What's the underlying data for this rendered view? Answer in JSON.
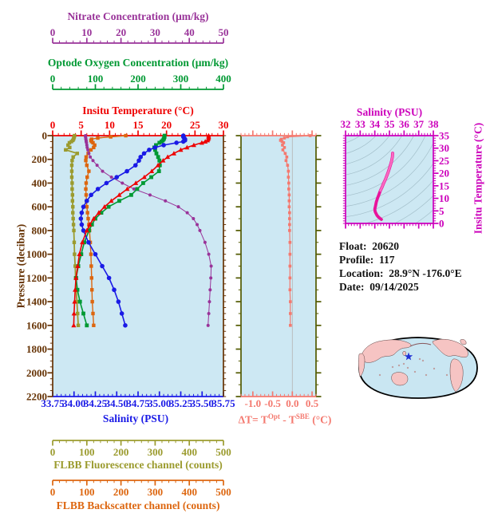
{
  "float_info": {
    "float_label": "Float:",
    "float_value": "20620",
    "profile_label": "Profile:",
    "profile_value": "117",
    "location_label": "Location:",
    "location_value": "28.9°N  -176.0°E",
    "date_label": "Date:",
    "date_value": "09/14/2025"
  },
  "titles": {
    "nitrate": "Nitrate Concentration (μm/kg)",
    "oxygen": "Optode Oxygen Concentration (μm/kg)",
    "temperature": "Insitu Temperature (°C)",
    "pressure": "Pressure (decibar)",
    "salinity": "Salinity (PSU)",
    "fluorescence": "FLBB Fluorescence channel (counts)",
    "backscatter": "FLBB Backscatter channel (counts)",
    "delta_t_prefix": "ΔT= T",
    "delta_t_sup1": "Opt",
    "delta_t_mid": " - T",
    "delta_t_sup2": "SBE",
    "delta_t_suffix": " (°C)",
    "ts_salinity": "Salinity (PSU)",
    "ts_temperature": "Insitu Temperature (°C)"
  },
  "colors": {
    "purple": "#993399",
    "green": "#009933",
    "red": "#ee0000",
    "brown": "#663305",
    "blue": "#1a1ae6",
    "olive": "#9b9b2e",
    "orange": "#dd660f",
    "salmon": "#f4796f",
    "darkolive": "#525a00",
    "magenta": "#cc00bb",
    "ts_curve_deep": "#e8139b",
    "ts_curve_shallow": "#fa6ac1",
    "plot_bg": "#cde8f3",
    "contour": "#a3bfca",
    "zero_line": "#b8b8b8",
    "map_ocean": "#c9e6f2",
    "map_land": "#f6c4c3",
    "map_outline": "#000000",
    "star": "#1f2fd4",
    "info_text": "#111111"
  },
  "chart_data": [
    {
      "id": "profile-plot",
      "type": "line",
      "title": "Multi-sensor vertical profile",
      "ylabel": "Pressure (decibar)",
      "ylim": [
        0,
        2200
      ],
      "yticks": [
        "0",
        "200",
        "400",
        "600",
        "800",
        "1000",
        "1200",
        "1400",
        "1600",
        "1800",
        "2000",
        "2200"
      ],
      "grid": false,
      "pressure": [
        0,
        10,
        20,
        30,
        40,
        50,
        60,
        80,
        100,
        120,
        150,
        180,
        210,
        250,
        300,
        350,
        400,
        450,
        500,
        550,
        600,
        650,
        700,
        750,
        800,
        900,
        1000,
        1100,
        1200,
        1300,
        1400,
        1500,
        1600
      ],
      "series": [
        {
          "name": "FLBB Fluorescence channel",
          "unit": "counts",
          "color_key": "olive",
          "axis": "offset-bottom-1",
          "xlim": [
            0,
            500
          ],
          "xticks": [
            "0",
            "100",
            "200",
            "300",
            "400",
            "500"
          ],
          "minor": 20,
          "marker": "square",
          "values": [
            64,
            63,
            62,
            61,
            59,
            55,
            49,
            45,
            50,
            38,
            72,
            60,
            57,
            56,
            56,
            56,
            57,
            57,
            58,
            58,
            59,
            59,
            60,
            61,
            62,
            63,
            64,
            66,
            67,
            69,
            71,
            73,
            75
          ]
        },
        {
          "name": "FLBB Backscatter channel",
          "unit": "counts",
          "color_key": "orange",
          "axis": "offset-bottom-2",
          "xlim": [
            0,
            500
          ],
          "xticks": [
            "0",
            "100",
            "200",
            "300",
            "400",
            "500"
          ],
          "minor": 20,
          "marker": "square",
          "values": [
            214,
            170,
            132,
            114,
            112,
            114,
            118,
            123,
            120,
            112,
            104,
            98,
            97,
            100,
            106,
            101,
            98,
            97,
            98,
            99,
            100,
            102,
            104,
            106,
            108,
            110,
            112,
            113,
            114,
            115,
            116,
            118,
            120
          ]
        },
        {
          "name": "Nitrate Concentration",
          "unit": "μm/kg",
          "color_key": "purple",
          "axis": "offset-top-1",
          "xlim": [
            0,
            50
          ],
          "xticks": [
            "0",
            "10",
            "20",
            "30",
            "40",
            "50"
          ],
          "minor": 2,
          "marker": "circle",
          "values": [
            9.6,
            9.6,
            9.7,
            9.7,
            9.8,
            9.8,
            9.9,
            10.0,
            10.1,
            10.3,
            10.6,
            11.0,
            11.8,
            13.0,
            14.6,
            17.2,
            20.4,
            23.8,
            28.5,
            33.0,
            36.8,
            39.4,
            41.2,
            42.3,
            43.1,
            44.6,
            45.7,
            46.4,
            46.3,
            46.1,
            45.9,
            45.7,
            45.5
          ]
        },
        {
          "name": "Optode Oxygen Concentration",
          "unit": "μm/kg",
          "color_key": "green",
          "axis": "offset-top-2",
          "xlim": [
            0,
            400
          ],
          "xticks": [
            "0",
            "100",
            "200",
            "300",
            "400"
          ],
          "minor": 20,
          "marker": "square",
          "values": [
            262,
            262,
            261,
            260,
            258,
            255,
            250,
            242,
            238,
            240,
            243,
            247,
            250,
            251,
            249,
            231,
            212,
            198,
            184,
            156,
            131,
            114,
            100,
            92,
            85,
            74,
            67,
            60,
            55,
            58,
            64,
            72,
            80
          ]
        },
        {
          "name": "Salinity",
          "unit": "PSU",
          "color_key": "blue",
          "axis": "plot-bottom",
          "xlim": [
            33.75,
            35.75
          ],
          "xticks": [
            "33.75",
            "34.00",
            "34.25",
            "34.50",
            "34.75",
            "35.00",
            "35.25",
            "35.50",
            "35.75"
          ],
          "minor": 0.05,
          "marker": "circle",
          "values": [
            35.28,
            35.28,
            35.29,
            35.3,
            35.3,
            35.28,
            35.2,
            35.05,
            34.95,
            34.88,
            34.82,
            34.78,
            34.76,
            34.72,
            34.62,
            34.5,
            34.38,
            34.28,
            34.2,
            34.15,
            34.11,
            34.09,
            34.08,
            34.09,
            34.11,
            34.17,
            34.25,
            34.33,
            34.41,
            34.47,
            34.52,
            34.56,
            34.6
          ]
        },
        {
          "name": "Insitu Temperature",
          "unit": "°C",
          "color_key": "red",
          "axis": "plot-top",
          "xlim": [
            0,
            30
          ],
          "xticks": [
            "0",
            "5",
            "10",
            "15",
            "20",
            "25",
            "30"
          ],
          "minor": 1,
          "marker": "triangle",
          "values": [
            27.4,
            27.4,
            27.4,
            27.3,
            27.2,
            26.8,
            26.2,
            24.8,
            23.6,
            22.5,
            21.3,
            20.2,
            19.4,
            18.5,
            17.4,
            16.1,
            14.6,
            13.1,
            11.7,
            10.3,
            9.1,
            8.1,
            7.2,
            6.5,
            6.0,
            5.2,
            4.7,
            4.4,
            4.1,
            3.95,
            3.85,
            3.75,
            3.7
          ]
        }
      ]
    },
    {
      "id": "delta-t-plot",
      "type": "line",
      "title": "ΔT = T(Opt) - T(SBE) (°C)",
      "xlim": [
        -1.3,
        0.6
      ],
      "xticks": [
        "-1.0",
        "-0.5",
        "0.0",
        "0.5"
      ],
      "minor": 0.1,
      "ylim": [
        0,
        2200
      ],
      "grid": false,
      "pressure": [
        0,
        10,
        20,
        30,
        40,
        50,
        60,
        80,
        100,
        120,
        150,
        180,
        210,
        250,
        300,
        350,
        400,
        450,
        500,
        550,
        600,
        650,
        700,
        750,
        800,
        900,
        1000,
        1100,
        1200,
        1300,
        1400,
        1500,
        1600
      ],
      "values": [
        0.45,
        -0.12,
        -0.2,
        -0.28,
        -0.3,
        -0.26,
        -0.22,
        -0.25,
        -0.2,
        -0.24,
        -0.18,
        -0.14,
        -0.16,
        -0.12,
        -0.1,
        -0.1,
        -0.09,
        -0.09,
        -0.08,
        -0.08,
        -0.08,
        -0.07,
        -0.07,
        -0.07,
        -0.07,
        -0.06,
        -0.06,
        -0.06,
        -0.06,
        -0.06,
        -0.05,
        -0.05,
        -0.05
      ]
    },
    {
      "id": "ts-plot",
      "type": "line",
      "title": "T-S diagram with isopycnal contours",
      "xlabel": "Salinity (PSU)",
      "xlim": [
        32,
        38
      ],
      "xticks": [
        "32",
        "33",
        "34",
        "35",
        "36",
        "37",
        "38"
      ],
      "xminor": 0.2,
      "ylabel": "Insitu Temperature (°C)",
      "ylim": [
        0,
        35
      ],
      "yticks": [
        "0",
        "5",
        "10",
        "15",
        "20",
        "25",
        "30",
        "35"
      ],
      "yminor": 1,
      "points": [
        [
          35.22,
          28.0
        ],
        [
          35.2,
          26.5
        ],
        [
          35.15,
          25.0
        ],
        [
          35.08,
          23.5
        ],
        [
          35.0,
          22.0
        ],
        [
          34.92,
          20.5
        ],
        [
          34.82,
          19.0
        ],
        [
          34.72,
          17.5
        ],
        [
          34.6,
          16.0
        ],
        [
          34.5,
          14.5
        ],
        [
          34.38,
          13.0
        ],
        [
          34.28,
          11.5
        ],
        [
          34.18,
          10.0
        ],
        [
          34.1,
          8.5
        ],
        [
          34.05,
          7.0
        ],
        [
          34.0,
          5.8
        ],
        [
          34.02,
          4.8
        ],
        [
          34.08,
          4.0
        ],
        [
          34.15,
          3.2
        ],
        [
          34.25,
          2.5
        ],
        [
          34.35,
          2.0
        ],
        [
          34.45,
          1.6
        ]
      ]
    }
  ],
  "map": {
    "type": "world-map",
    "float_marker": "star"
  }
}
